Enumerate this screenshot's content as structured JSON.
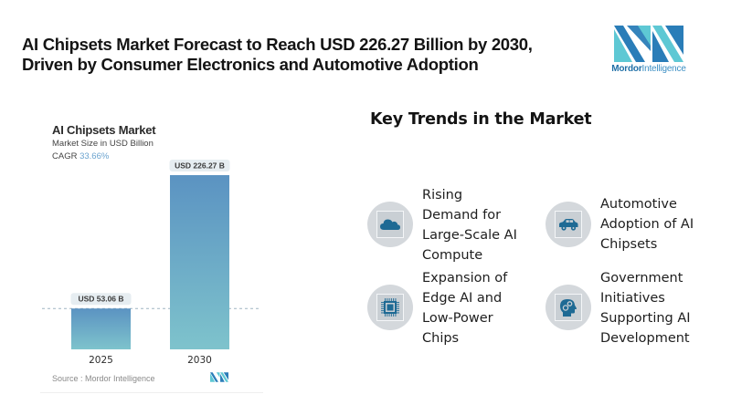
{
  "headline": {
    "line1": "AI Chipsets Market Forecast to Reach USD 226.27 Billion by 2030,",
    "line2": "Driven by Consumer Electronics and Automotive Adoption"
  },
  "logo": {
    "brand_bold": "Mordor",
    "brand_light": "Intelligence",
    "colors": {
      "dark": "#2a7db8",
      "light": "#5ec8d4"
    }
  },
  "chart_panel": {
    "title": "AI Chipsets Market",
    "subtitle": "Market Size in USD Billion",
    "cagr_label": "CAGR",
    "cagr_value": "33.66%",
    "source": "Source :  Mordor Intelligence"
  },
  "chart_data": {
    "type": "bar",
    "title": "AI Chipsets Market",
    "subtitle": "Market Size in USD Billion",
    "categories": [
      "2025",
      "2030"
    ],
    "values": [
      53.06,
      226.27
    ],
    "data_labels": [
      "USD 53.06 B",
      "USD 226.27 B"
    ],
    "unit": "USD Billion",
    "cagr": "33.66%",
    "xlabel": "",
    "ylabel": "",
    "ylim": [
      0,
      226.27
    ],
    "grid": false,
    "reference_line": {
      "style": "dashed",
      "at_value": 53.06
    },
    "colors": {
      "bar_top": "#5b93c2",
      "bar_bottom": "#7ec3cc",
      "label_bg": "#e6edf1"
    },
    "source": "Mordor Intelligence"
  },
  "trends": {
    "heading": "Key Trends in the Market",
    "items": [
      {
        "icon": "cloud-icon",
        "lines": [
          "Rising",
          "Demand for",
          "Large-Scale AI",
          "Compute"
        ]
      },
      {
        "icon": "car-icon",
        "lines": [
          "Automotive",
          "Adoption of AI",
          "Chipsets"
        ]
      },
      {
        "icon": "chip-icon",
        "lines": [
          "Expansion of",
          "Edge AI and",
          "Low-Power",
          "Chips"
        ]
      },
      {
        "icon": "head-gears-icon",
        "lines": [
          "Government",
          "Initiatives",
          "Supporting AI",
          "Development"
        ]
      }
    ],
    "icon_color": "#1e6a94"
  }
}
